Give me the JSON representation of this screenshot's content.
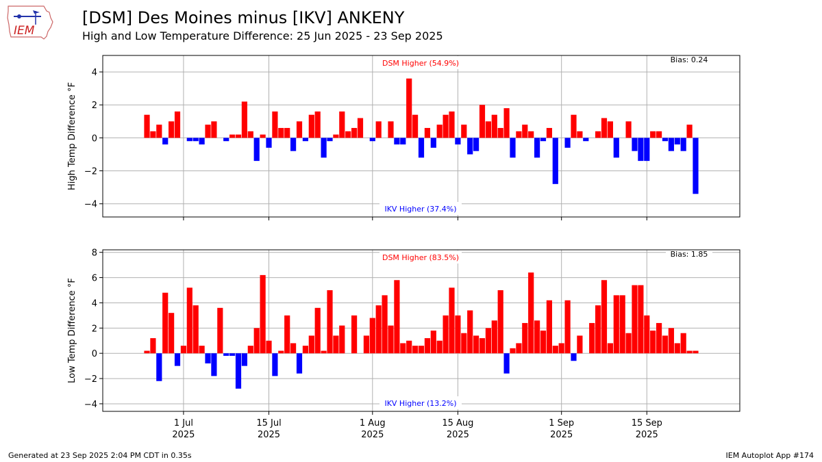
{
  "title": "[DSM] Des Moines minus [IKV] ANKENY",
  "subtitle": "High and Low Temperature Difference: 25 Jun 2025 - 23 Sep 2025",
  "footer_left": "Generated at 23 Sep 2025 2:04 PM CDT in 0.35s",
  "footer_right": "IEM Autoplot App #174",
  "logo_text": "IEM",
  "colors": {
    "positive": "#ff0000",
    "negative": "#0000ff",
    "grid": "#b0b0b0"
  },
  "chart_data": [
    {
      "type": "bar",
      "ylabel": "High Temp Difference °F",
      "ylim": [
        -4.8,
        5.0
      ],
      "yticks": [
        -4,
        -2,
        0,
        2,
        4
      ],
      "ytick_labels": [
        "−4",
        "−2",
        "0",
        "2",
        "4"
      ],
      "grid": true,
      "top_annotation": "DSM Higher (54.9%)",
      "bottom_annotation": "IKV Higher (37.4%)",
      "bias": "Bias: 0.24",
      "start_date": "2025-06-25",
      "x_interval_days": 1,
      "x_tick_dates": [
        "2025-07-01",
        "2025-07-15",
        "2025-08-01",
        "2025-08-15",
        "2025-09-01",
        "2025-09-15"
      ],
      "x_tick_labels": [
        [
          "1 Jul",
          "2025"
        ],
        [
          "15 Jul",
          "2025"
        ],
        [
          "1 Aug",
          "2025"
        ],
        [
          "15 Aug",
          "2025"
        ],
        [
          "1 Sep",
          "2025"
        ],
        [
          "15 Sep",
          "2025"
        ]
      ],
      "values": [
        1.4,
        0.4,
        0.8,
        -0.4,
        1.0,
        1.6,
        0,
        -0.2,
        -0.2,
        -0.4,
        0.8,
        1.0,
        0,
        -0.2,
        0.2,
        0.2,
        2.2,
        0.4,
        -1.4,
        0.2,
        -0.6,
        1.6,
        0.6,
        0.6,
        -0.8,
        1.0,
        -0.2,
        1.4,
        1.6,
        -1.2,
        -0.2,
        0.2,
        1.6,
        0.4,
        0.6,
        1.2,
        0,
        -0.2,
        1.0,
        0,
        1.0,
        -0.4,
        -0.4,
        3.6,
        1.4,
        -1.2,
        0.6,
        -0.6,
        0.8,
        1.4,
        1.6,
        -0.4,
        0.8,
        -1.0,
        -0.8,
        2.0,
        1.0,
        1.4,
        0.6,
        1.8,
        -1.2,
        0.4,
        0.8,
        0.4,
        -1.2,
        -0.2,
        0.6,
        -2.8,
        0,
        -0.6,
        1.4,
        0.4,
        -0.2,
        0,
        0.4,
        1.2,
        1.0,
        -1.2,
        0,
        1.0,
        -0.8,
        -1.4,
        -1.4,
        0.4,
        0.4,
        -0.2,
        -0.8,
        -0.4,
        -0.8,
        0.8,
        -3.4
      ]
    },
    {
      "type": "bar",
      "ylabel": "Low Temp Difference °F",
      "ylim": [
        -4.6,
        8.2
      ],
      "yticks": [
        -4,
        -2,
        0,
        2,
        4,
        6,
        8
      ],
      "ytick_labels": [
        "−4",
        "−2",
        "0",
        "2",
        "4",
        "6",
        "8"
      ],
      "grid": true,
      "top_annotation": "DSM Higher (83.5%)",
      "bottom_annotation": "IKV Higher (13.2%)",
      "bias": "Bias: 1.85",
      "start_date": "2025-06-25",
      "x_interval_days": 1,
      "x_tick_dates": [
        "2025-07-01",
        "2025-07-15",
        "2025-08-01",
        "2025-08-15",
        "2025-09-01",
        "2025-09-15"
      ],
      "x_tick_labels": [
        [
          "1 Jul",
          "2025"
        ],
        [
          "15 Jul",
          "2025"
        ],
        [
          "1 Aug",
          "2025"
        ],
        [
          "15 Aug",
          "2025"
        ],
        [
          "1 Sep",
          "2025"
        ],
        [
          "15 Sep",
          "2025"
        ]
      ],
      "values": [
        0.2,
        1.2,
        -2.2,
        4.8,
        3.2,
        -1.0,
        0.6,
        5.2,
        3.8,
        0.6,
        -0.8,
        -1.8,
        3.6,
        -0.2,
        -0.2,
        -2.8,
        -1.0,
        0.6,
        2.0,
        6.2,
        1.0,
        -1.8,
        0.2,
        3.0,
        0.8,
        -1.6,
        0.6,
        1.4,
        3.6,
        0.2,
        5.0,
        1.4,
        2.2,
        0,
        3.0,
        0,
        1.4,
        2.8,
        3.8,
        4.6,
        2.2,
        5.8,
        0.8,
        1.0,
        0.6,
        0.6,
        1.2,
        1.8,
        1.0,
        3.0,
        5.2,
        3.0,
        1.6,
        3.4,
        1.4,
        1.2,
        2.0,
        2.6,
        5.0,
        -1.6,
        0.4,
        0.8,
        2.4,
        6.4,
        2.6,
        1.8,
        4.2,
        0.6,
        0.8,
        4.2,
        -0.6,
        1.4,
        0,
        2.4,
        3.8,
        5.8,
        0.8,
        4.6,
        4.6,
        1.6,
        5.4,
        5.4,
        3.0,
        1.8,
        2.4,
        1.4,
        2.0,
        0.8,
        1.6,
        0.2,
        0.2
      ]
    }
  ]
}
